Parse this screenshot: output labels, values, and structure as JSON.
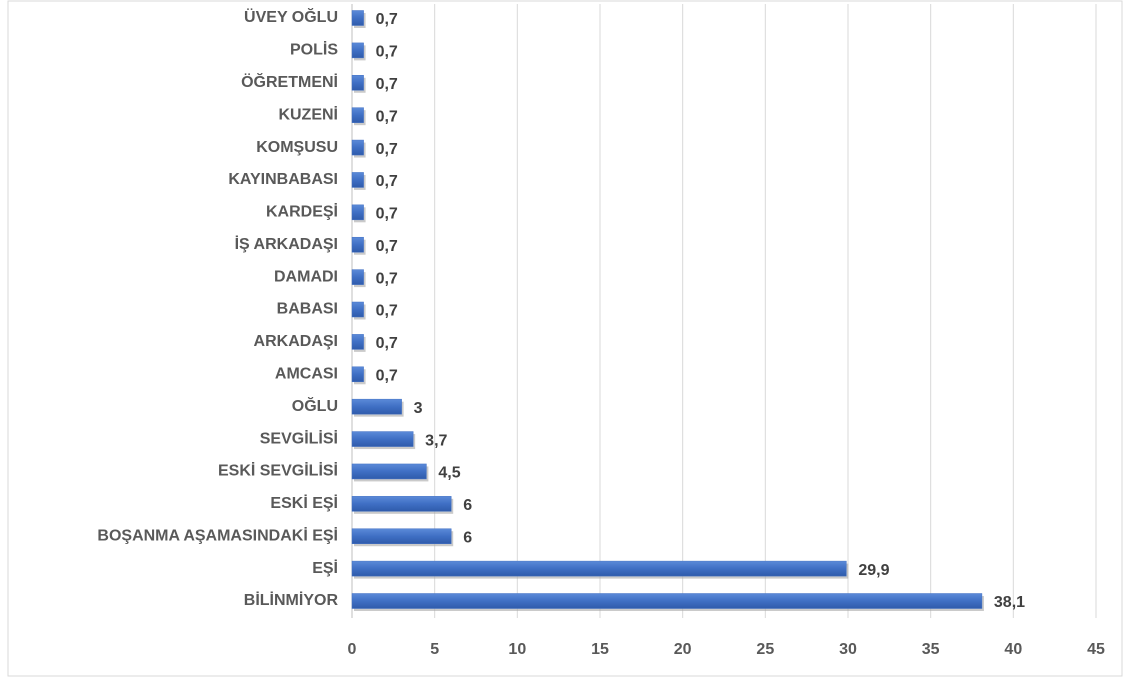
{
  "chart_data": {
    "type": "hbar",
    "categories": [
      "ÜVEY OĞLU",
      "POLİS",
      "ÖĞRETMENİ",
      "KUZENİ",
      "KOMŞUSU",
      "KAYINBABASI",
      "KARDEŞİ",
      "İŞ ARKADAŞI",
      "DAMADI",
      "BABASI",
      "ARKADAŞI",
      "AMCASI",
      "OĞLU",
      "SEVGİLİSİ",
      "ESKİ SEVGİLİSİ",
      "ESKİ EŞİ",
      "BOŞANMA AŞAMASINDAKİ EŞİ",
      "EŞİ",
      "BİLİNMİYOR"
    ],
    "values": [
      0.7,
      0.7,
      0.7,
      0.7,
      0.7,
      0.7,
      0.7,
      0.7,
      0.7,
      0.7,
      0.7,
      0.7,
      3,
      3.7,
      4.5,
      6,
      6,
      29.9,
      38.1
    ],
    "value_labels": [
      "0,7",
      "0,7",
      "0,7",
      "0,7",
      "0,7",
      "0,7",
      "0,7",
      "0,7",
      "0,7",
      "0,7",
      "0,7",
      "0,7",
      "3",
      "3,7",
      "4,5",
      "6",
      "6",
      "29,9",
      "38,1"
    ],
    "color": "#4472c4",
    "xlim": [
      0,
      45
    ],
    "xticks": [
      0,
      5,
      10,
      15,
      20,
      25,
      30,
      35,
      40,
      45
    ],
    "grid": true
  }
}
